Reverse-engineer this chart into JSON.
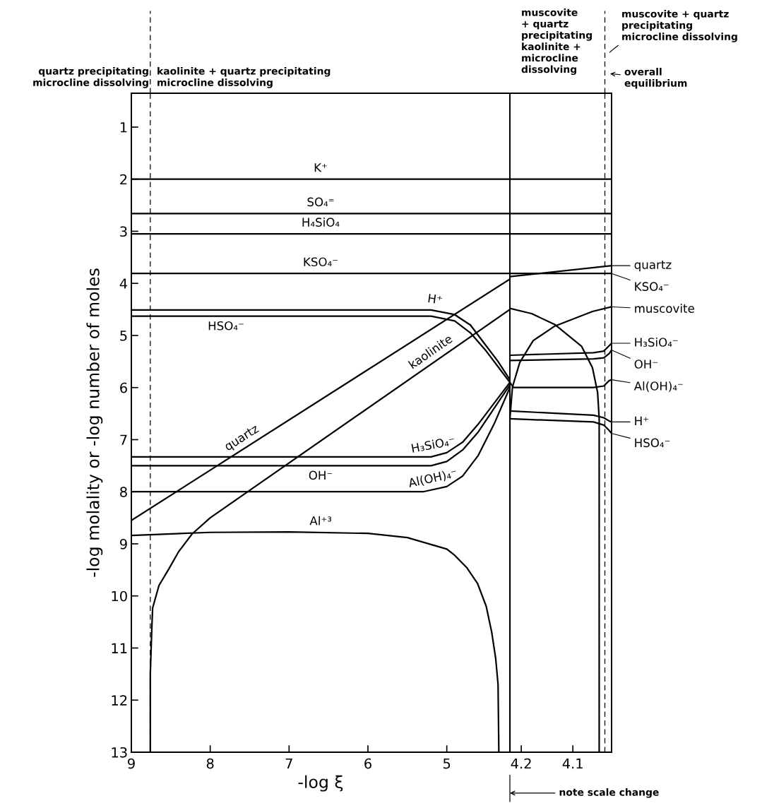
{
  "chart_data": [
    {
      "type": "line",
      "xlabel": "-log ξ",
      "ylabel": "-log molality or -log number of moles",
      "xlim": [
        9,
        4.2
      ],
      "xticks": [
        9,
        8,
        7,
        6,
        5
      ],
      "ylim": [
        13,
        0.35
      ],
      "yticks": [
        1,
        2,
        3,
        4,
        5,
        6,
        7,
        8,
        9,
        10,
        11,
        12,
        13
      ],
      "line_style": "solid",
      "ref_lines": [
        {
          "axis": "x",
          "value": 8.76,
          "label": null,
          "line_style": "dashed",
          "color": "#000000"
        }
      ],
      "annotations": [
        "quartz precipitating\nmicrocline dissolving",
        "kaolinite + quartz precipitating\nmicrocline dissolving"
      ],
      "series": [
        {
          "name": "K⁺",
          "color": "#000000",
          "x": [
            9,
            4.2
          ],
          "values": [
            2.0,
            2.0
          ]
        },
        {
          "name": "SO₄⁼",
          "color": "#000000",
          "x": [
            9,
            4.2
          ],
          "values": [
            2.66,
            2.66
          ]
        },
        {
          "name": "H₄SiO₄",
          "color": "#000000",
          "x": [
            9,
            4.2
          ],
          "values": [
            3.05,
            3.05
          ]
        },
        {
          "name": "KSO₄⁻",
          "color": "#000000",
          "x": [
            9,
            4.2
          ],
          "values": [
            3.81,
            3.81
          ]
        },
        {
          "name": "H⁺",
          "color": "#000000",
          "x": [
            9,
            5.2,
            4.9,
            4.7,
            4.5,
            4.35,
            4.2
          ],
          "values": [
            4.51,
            4.51,
            4.6,
            4.8,
            5.2,
            5.5,
            5.85
          ]
        },
        {
          "name": "HSO₄⁻",
          "color": "#000000",
          "x": [
            9,
            5.2,
            4.9,
            4.7,
            4.5,
            4.35,
            4.2
          ],
          "values": [
            4.63,
            4.63,
            4.72,
            4.95,
            5.3,
            5.6,
            5.9
          ]
        },
        {
          "name": "quartz",
          "color": "#000000",
          "x": [
            9,
            4.2
          ],
          "values": [
            8.55,
            3.92
          ]
        },
        {
          "name": "kaolinite",
          "color": "#000000",
          "x": [
            8.76,
            8.76,
            8.74,
            8.73,
            8.65,
            8.52,
            8.4,
            8.23,
            8.0,
            4.2
          ],
          "values": [
            13,
            11.5,
            10.6,
            10.23,
            9.8,
            9.47,
            9.15,
            8.81,
            8.5,
            4.5
          ]
        },
        {
          "name": "H₃SiO₄⁻",
          "color": "#000000",
          "x": [
            9,
            5.2,
            5.0,
            4.8,
            4.6,
            4.4,
            4.2
          ],
          "values": [
            7.33,
            7.33,
            7.25,
            7.05,
            6.7,
            6.3,
            5.9
          ]
        },
        {
          "name": "OH⁻",
          "color": "#000000",
          "x": [
            9,
            5.2,
            5.0,
            4.8,
            4.6,
            4.4,
            4.2
          ],
          "values": [
            7.5,
            7.5,
            7.42,
            7.2,
            6.85,
            6.4,
            5.95
          ]
        },
        {
          "name": "Al(OH)₄⁻",
          "color": "#000000",
          "x": [
            9,
            5.3,
            5.0,
            4.8,
            4.6,
            4.4,
            4.2
          ],
          "values": [
            8.0,
            8.0,
            7.9,
            7.7,
            7.3,
            6.7,
            6.0
          ]
        },
        {
          "name": "Al⁺³",
          "color": "#000000",
          "x": [
            9,
            8,
            7,
            6,
            5.5,
            5.0,
            4.9,
            4.75,
            4.61,
            4.5,
            4.43,
            4.38,
            4.35,
            4.34
          ],
          "values": [
            8.84,
            8.78,
            8.77,
            8.8,
            8.88,
            9.1,
            9.22,
            9.45,
            9.76,
            10.2,
            10.7,
            11.2,
            11.7,
            13
          ]
        }
      ]
    },
    {
      "type": "line",
      "xlim": [
        4.222,
        4.025
      ],
      "xticks": [
        4.2,
        4.1
      ],
      "ylim": [
        13,
        0.35
      ],
      "tick_labels": "x",
      "line_style": "solid",
      "legend": "right",
      "ref_lines": [
        {
          "axis": "x",
          "value": 4.038,
          "label": null,
          "line_style": "dashed",
          "color": "#000000"
        }
      ],
      "annotations": [
        "muscovite\n+ quartz\nprecipitating\nkaolinite +\nmicrocline\ndissolving",
        "muscovite + quartz\nprecipitating\nmicrocline dissolving",
        "overall\nequilibrium",
        "note scale change"
      ],
      "series": [
        {
          "color": "#000000",
          "x": [
            4.222,
            4.025
          ],
          "values": [
            2.0,
            2.0
          ]
        },
        {
          "color": "#000000",
          "x": [
            4.222,
            4.025
          ],
          "values": [
            2.66,
            2.66
          ]
        },
        {
          "color": "#000000",
          "x": [
            4.222,
            4.025
          ],
          "values": [
            3.05,
            3.05
          ]
        },
        {
          "name": "quartz",
          "color": "#000000",
          "x": [
            4.222,
            4.025
          ],
          "values": [
            3.87,
            3.66
          ]
        },
        {
          "name": "KSO₄⁻",
          "color": "#000000",
          "x": [
            4.222,
            4.025
          ],
          "values": [
            3.81,
            3.81
          ]
        },
        {
          "color": "#000000",
          "x": [
            4.222,
            4.18,
            4.135,
            4.083,
            4.062,
            4.052,
            4.049,
            4.049
          ],
          "values": [
            4.48,
            4.58,
            4.79,
            5.21,
            5.62,
            6.1,
            6.6,
            13
          ]
        },
        {
          "name": "muscovite",
          "color": "#000000",
          "x": [
            4.222,
            4.222,
            4.217,
            4.203,
            4.177,
            4.135,
            4.062,
            4.025
          ],
          "values": [
            13,
            6.6,
            5.99,
            5.52,
            5.1,
            4.82,
            4.54,
            4.45
          ]
        },
        {
          "name": "H₃SiO₄⁻",
          "color": "#000000",
          "x": [
            4.222,
            4.06,
            4.04,
            4.03,
            4.025
          ],
          "values": [
            5.38,
            5.33,
            5.3,
            5.2,
            5.15
          ]
        },
        {
          "name": "OH⁻",
          "color": "#000000",
          "x": [
            4.222,
            4.06,
            4.04,
            4.03,
            4.025
          ],
          "values": [
            5.48,
            5.45,
            5.43,
            5.35,
            5.28
          ]
        },
        {
          "name": "Al(OH)₄⁻",
          "color": "#000000",
          "x": [
            4.222,
            4.215,
            4.15,
            4.06,
            4.04,
            4.03,
            4.025
          ],
          "values": [
            5.9,
            6.0,
            6.0,
            6.0,
            5.97,
            5.87,
            5.85
          ]
        },
        {
          "name": "H⁺",
          "color": "#000000",
          "x": [
            4.222,
            4.06,
            4.04,
            4.03,
            4.025
          ],
          "values": [
            6.45,
            6.53,
            6.58,
            6.64,
            6.66
          ]
        },
        {
          "name": "HSO₄⁻",
          "color": "#000000",
          "x": [
            4.222,
            4.06,
            4.04,
            4.03,
            4.025
          ],
          "values": [
            6.6,
            6.66,
            6.72,
            6.82,
            6.88
          ]
        }
      ]
    }
  ]
}
